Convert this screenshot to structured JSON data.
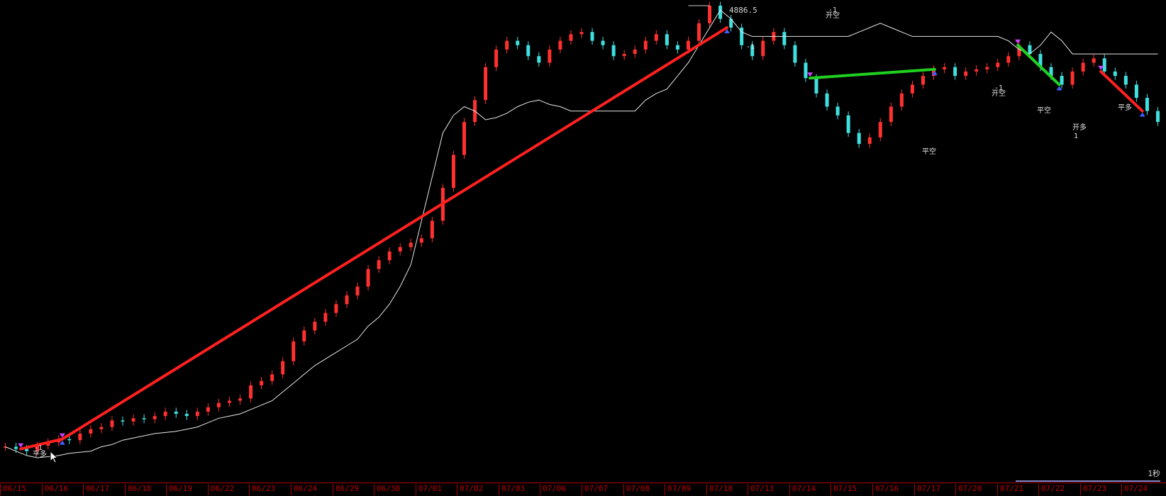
{
  "chart_data": {
    "type": "line",
    "title": "",
    "peak_label": "4886.5",
    "speed_label": "1秒",
    "x_ticks": [
      "06/15",
      "06/16",
      "06/17",
      "06/18",
      "06/19",
      "06/22",
      "06/23",
      "06/24",
      "06/29",
      "06/30",
      "07/01",
      "07/02",
      "07/03",
      "07/06",
      "07/07",
      "07/08",
      "07/09",
      "07/10",
      "07/13",
      "07/14",
      "07/15",
      "07/16",
      "07/17",
      "07/20",
      "07/21",
      "07/22",
      "07/23",
      "07/24"
    ],
    "series": [
      {
        "kind": "price-candles",
        "up_color": "#ff3030",
        "down_color": "#40e0e0",
        "values": [
          2870,
          2860,
          2850,
          2875,
          2890,
          2905,
          2900,
          2930,
          2950,
          2960,
          2990,
          2985,
          3000,
          2995,
          3010,
          3030,
          3020,
          3010,
          3030,
          3050,
          3070,
          3080,
          3090,
          3150,
          3170,
          3200,
          3260,
          3350,
          3400,
          3440,
          3480,
          3520,
          3560,
          3600,
          3680,
          3720,
          3760,
          3780,
          3800,
          3820,
          3900,
          4050,
          4200,
          4350,
          4450,
          4600,
          4680,
          4720,
          4700,
          4650,
          4620,
          4680,
          4720,
          4750,
          4760,
          4720,
          4700,
          4650,
          4660,
          4680,
          4720,
          4750,
          4700,
          4680,
          4720,
          4800,
          4880,
          4820,
          4780,
          4700,
          4650,
          4720,
          4760,
          4700,
          4620,
          4550,
          4480,
          4420,
          4380,
          4300,
          4250,
          4280,
          4350,
          4420,
          4480,
          4520,
          4560,
          4590,
          4600,
          4560,
          4580,
          4590,
          4600,
          4620,
          4650,
          4700,
          4660,
          4600,
          4560,
          4520,
          4580,
          4620,
          4640,
          4580,
          4560,
          4520,
          4460,
          4400,
          4350
        ]
      },
      {
        "kind": "white-line",
        "color": "#e8e8e8",
        "values": [
          2870,
          2850,
          2830,
          2820,
          2825,
          2830,
          2840,
          2845,
          2850,
          2870,
          2880,
          2900,
          2910,
          2920,
          2930,
          2935,
          2940,
          2950,
          2960,
          2980,
          3000,
          3010,
          3020,
          3040,
          3060,
          3080,
          3120,
          3160,
          3200,
          3240,
          3270,
          3300,
          3330,
          3360,
          3420,
          3460,
          3520,
          3600,
          3700,
          3900,
          4100,
          4300,
          4380,
          4420,
          4400,
          4360,
          4370,
          4390,
          4420,
          4440,
          4450,
          4430,
          4420,
          4400,
          4400,
          4400,
          4400,
          4400,
          4400,
          4400,
          4450,
          4480,
          4500,
          4560,
          4620,
          4700,
          4780,
          4860,
          4820,
          4760,
          4740,
          4740,
          4740,
          4740,
          4740,
          4740,
          4740,
          4740,
          4740,
          4740,
          4760,
          4780,
          4800,
          4780,
          4760,
          4740,
          4740,
          4740,
          4740,
          4740,
          4740,
          4740,
          4740,
          4740,
          4720,
          4680,
          4660,
          4700,
          4760,
          4720,
          4660,
          4660,
          4660,
          4660,
          4660,
          4660,
          4660,
          4660,
          4660
        ]
      }
    ],
    "trades": [
      {
        "from": "06/15",
        "to": "06/16",
        "color": "#ff2020",
        "label_top": "-1",
        "label": "平多"
      },
      {
        "from": "06/16",
        "to": "07/10",
        "color": "#ff2020",
        "label_top": "-1",
        "label": "平多"
      },
      {
        "from": "07/14",
        "to": "07/17",
        "color": "#20d020",
        "label_top": "-1",
        "label": "开空",
        "label_end": "平空"
      },
      {
        "from": "07/21",
        "to": "07/22",
        "color": "#20d020",
        "label_top": "-1",
        "label": "开空",
        "label_end": "平空"
      },
      {
        "from": "07/23",
        "to": "07/24",
        "color": "#ff2020",
        "label": "开多",
        "label_bottom": "1",
        "label_end": "平多"
      }
    ]
  }
}
